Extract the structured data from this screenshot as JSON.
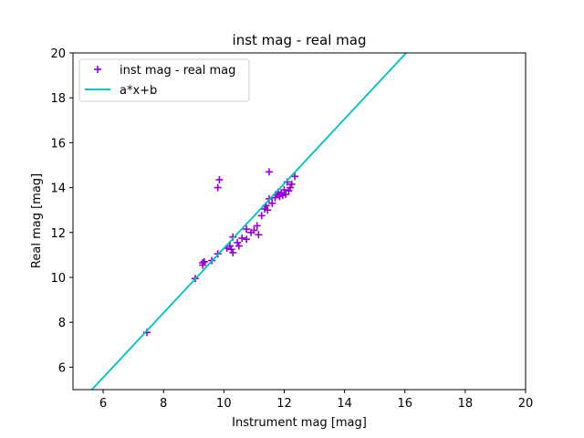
{
  "chart_data": {
    "type": "scatter",
    "title": "inst mag - real mag",
    "xlabel": "Instrument mag [mag]",
    "ylabel": "Real mag [mag]",
    "xlim": [
      5,
      20
    ],
    "ylim": [
      5,
      20
    ],
    "xticks": [
      6,
      8,
      10,
      12,
      14,
      16,
      18,
      20
    ],
    "yticks": [
      6,
      8,
      10,
      12,
      14,
      16,
      18,
      20
    ],
    "grid": false,
    "legend_position": "top-left",
    "series": [
      {
        "name": "inst mag - real mag",
        "kind": "scatter",
        "marker": "+",
        "color": "#9400d3",
        "points": [
          [
            7.45,
            7.55
          ],
          [
            9.05,
            9.95
          ],
          [
            9.3,
            10.55
          ],
          [
            9.3,
            10.65
          ],
          [
            9.35,
            10.7
          ],
          [
            9.6,
            10.75
          ],
          [
            9.8,
            11.05
          ],
          [
            9.8,
            14.0
          ],
          [
            9.85,
            14.35
          ],
          [
            10.1,
            11.3
          ],
          [
            10.2,
            11.4
          ],
          [
            10.25,
            11.25
          ],
          [
            10.3,
            11.1
          ],
          [
            10.3,
            11.8
          ],
          [
            10.45,
            11.55
          ],
          [
            10.5,
            11.4
          ],
          [
            10.6,
            11.75
          ],
          [
            10.75,
            11.7
          ],
          [
            10.75,
            12.15
          ],
          [
            10.9,
            12.0
          ],
          [
            11.0,
            12.1
          ],
          [
            11.1,
            12.3
          ],
          [
            11.15,
            11.9
          ],
          [
            11.25,
            12.75
          ],
          [
            11.35,
            13.05
          ],
          [
            11.4,
            13.2
          ],
          [
            11.45,
            13.0
          ],
          [
            11.5,
            13.5
          ],
          [
            11.5,
            14.7
          ],
          [
            11.6,
            13.3
          ],
          [
            11.7,
            13.55
          ],
          [
            11.75,
            13.7
          ],
          [
            11.8,
            13.8
          ],
          [
            11.85,
            13.6
          ],
          [
            11.9,
            13.75
          ],
          [
            11.95,
            13.65
          ],
          [
            12.0,
            13.9
          ],
          [
            12.05,
            13.7
          ],
          [
            12.1,
            14.25
          ],
          [
            12.15,
            13.85
          ],
          [
            12.2,
            14.0
          ],
          [
            12.25,
            14.15
          ],
          [
            12.35,
            14.5
          ]
        ]
      },
      {
        "name": "a*x+b",
        "kind": "line",
        "color": "#00bfbf",
        "slope": 1.44,
        "intercept": -3.1
      }
    ]
  }
}
